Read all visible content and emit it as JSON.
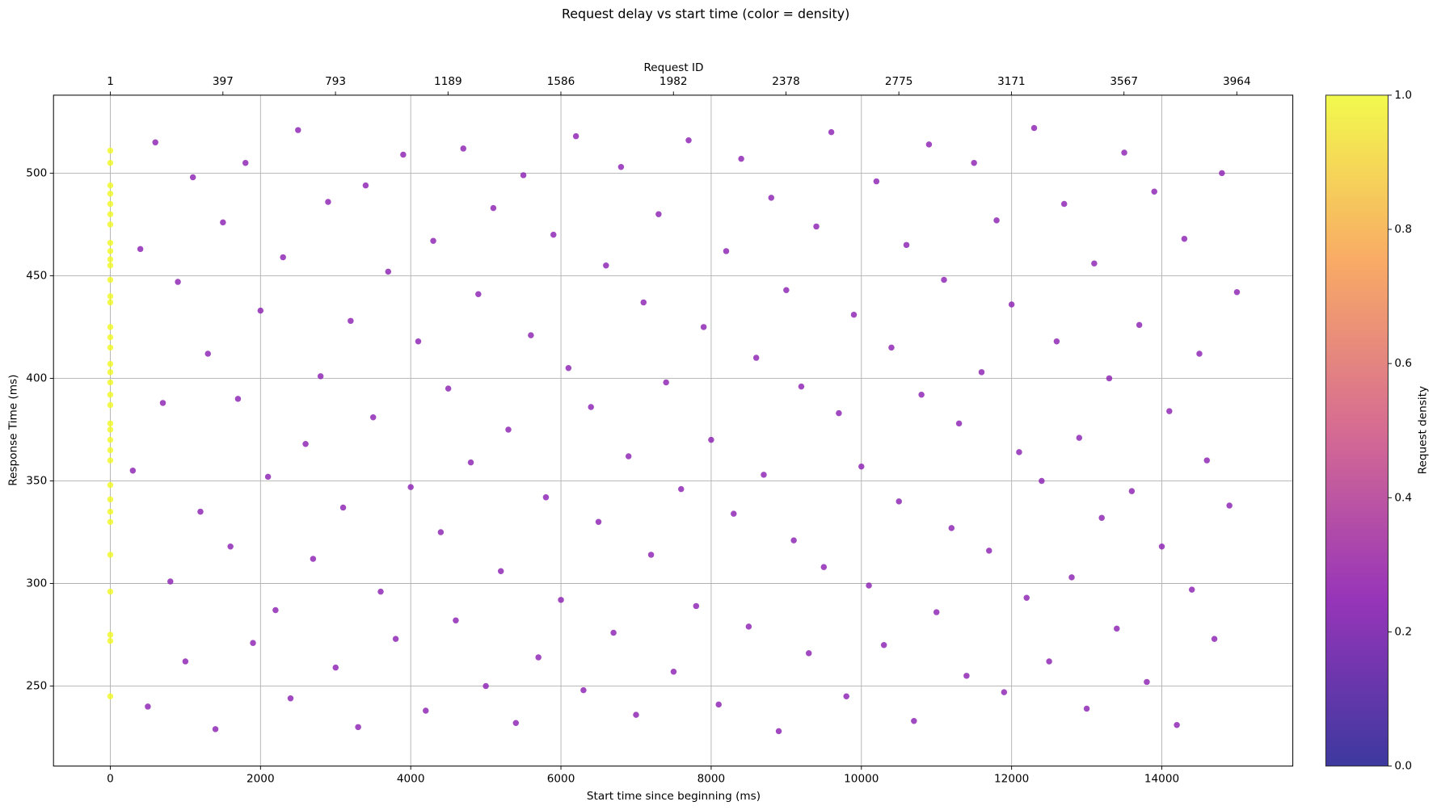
{
  "chart_data": {
    "type": "scatter",
    "title": "Request delay vs start time (color = density)",
    "xlabel": "Start time since beginning (ms)",
    "ylabel": "Response Time (ms)",
    "x2label": "Request ID",
    "xlim": [
      -756,
      15744
    ],
    "ylim": [
      211,
      538
    ],
    "xticks": [
      0,
      2000,
      4000,
      6000,
      8000,
      10000,
      12000,
      14000
    ],
    "yticks": [
      250,
      300,
      350,
      400,
      450,
      500
    ],
    "x2lim": [
      -199,
      4161
    ],
    "x2ticks": [
      1,
      397,
      793,
      1189,
      1586,
      1982,
      2378,
      2775,
      3171,
      3567,
      3964
    ],
    "grid": true,
    "series": [
      {
        "color": "#8a1cb0",
        "x": [
          300,
          400,
          500,
          600,
          700,
          800,
          900,
          1000,
          1100,
          1200,
          1300,
          1400,
          1500,
          1600,
          1700,
          1800,
          1900,
          2000,
          2100,
          2200,
          2300,
          2400,
          2500,
          2600,
          2700,
          2800,
          2900,
          3000,
          3100,
          3200,
          3300,
          3400,
          3500,
          3600,
          3700,
          3800,
          3900,
          4000,
          4100,
          4200,
          4300,
          4400,
          4500,
          4600,
          4700,
          4800,
          4900,
          5000,
          5100,
          5200,
          5300,
          5400,
          5500,
          5600,
          5700,
          5800,
          5900,
          6000,
          6100,
          6200,
          6300,
          6400,
          6500,
          6600,
          6700,
          6800,
          6900,
          7000,
          7100,
          7200,
          7300,
          7400,
          7500,
          7600,
          7700,
          7800,
          7900,
          8000,
          8100,
          8200,
          8300,
          8400,
          8500,
          8600,
          8700,
          8800,
          8900,
          9000,
          9100,
          9200,
          9300,
          9400,
          9500,
          9600,
          9700,
          9800,
          9900,
          10000,
          10100,
          10200,
          10300,
          10400,
          10500,
          10600,
          10700,
          10800,
          10900,
          11000,
          11100,
          11200,
          11300,
          11400,
          11500,
          11600,
          11700,
          11800,
          11900,
          12000,
          12100,
          12200,
          12300,
          12400,
          12500,
          12600,
          12700,
          12800,
          12900,
          13000,
          13100,
          13200,
          13300,
          13400,
          13500,
          13600,
          13700,
          13800,
          13900,
          14000,
          14100,
          14200,
          14300,
          14400,
          14500,
          14600,
          14700,
          14800,
          14900,
          15000
        ],
        "values": [
          355,
          463,
          240,
          515,
          388,
          301,
          447,
          262,
          498,
          335,
          412,
          229,
          476,
          318,
          390,
          505,
          271,
          433,
          352,
          287,
          459,
          244,
          521,
          368,
          312,
          401,
          486,
          259,
          337,
          428,
          230,
          494,
          381,
          296,
          452,
          273,
          509,
          347,
          418,
          238,
          467,
          325,
          395,
          282,
          512,
          359,
          441,
          250,
          483,
          306,
          375,
          232,
          499,
          421,
          264,
          342,
          470,
          292,
          405,
          518,
          248,
          386,
          330,
          455,
          276,
          503,
          362,
          236,
          437,
          314,
          480,
          398,
          257,
          346,
          516,
          289,
          425,
          370,
          241,
          462,
          334,
          507,
          279,
          410,
          353,
          488,
          228,
          443,
          321,
          396,
          266,
          474,
          308,
          520,
          383,
          245,
          431,
          357,
          299,
          496,
          270,
          415,
          340,
          465,
          233,
          392,
          514,
          286,
          448,
          327,
          378,
          255,
          505,
          403,
          316,
          477,
          247,
          436,
          364,
          293,
          522,
          350,
          262,
          418,
          485,
          303,
          371,
          239,
          456,
          332,
          400,
          278,
          510,
          345,
          426,
          252,
          491,
          318,
          384,
          231,
          468,
          297,
          412,
          360,
          273,
          500,
          338,
          442
        ]
      },
      {
        "color": "#f0f921",
        "x": [
          0,
          0,
          0,
          0,
          0,
          0,
          0,
          0,
          0,
          0,
          0,
          0,
          0,
          0,
          0,
          0,
          0,
          0,
          0,
          0,
          0,
          0,
          0,
          0,
          0,
          0,
          0,
          0,
          0,
          0,
          0,
          0,
          0,
          0,
          0,
          0
        ],
        "values": [
          245,
          272,
          275,
          296,
          314,
          330,
          335,
          341,
          348,
          360,
          365,
          370,
          375,
          378,
          387,
          392,
          398,
          403,
          407,
          415,
          420,
          425,
          437,
          440,
          448,
          455,
          458,
          462,
          466,
          475,
          480,
          485,
          490,
          494,
          505,
          511
        ]
      }
    ],
    "colorbar": {
      "label": "Request density",
      "lim": [
        0,
        1
      ],
      "ticks": [
        {
          "value": 0,
          "label": "0.0"
        },
        0.2,
        0.4,
        0.6,
        0.8,
        {
          "value": 1,
          "label": "1.0"
        }
      ],
      "colors": [
        "#0d0887",
        "#7e03a8",
        "#cc4778",
        "#f89540",
        "#f0f921"
      ]
    }
  }
}
